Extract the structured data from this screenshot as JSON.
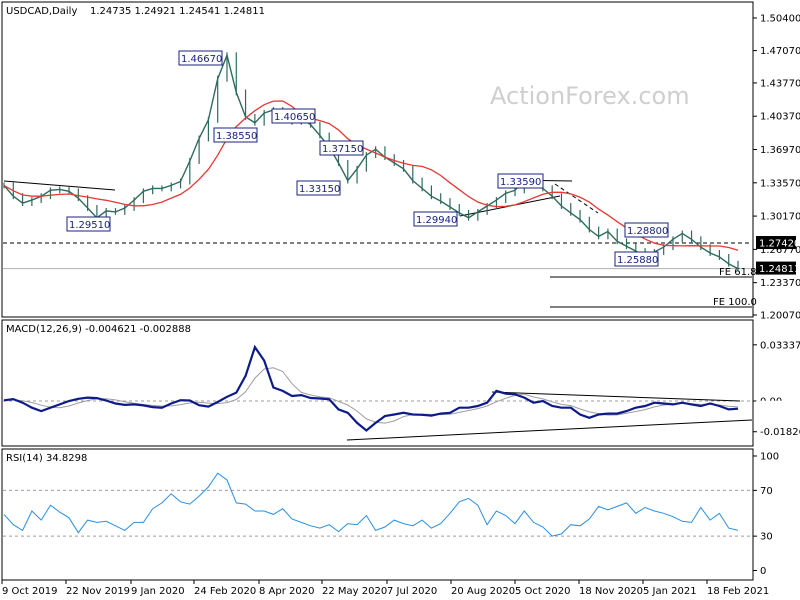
{
  "header": {
    "symbol": "USDCAD,Daily",
    "ohlc": "1.24735 1.24921 1.24541 1.24811"
  },
  "watermark": "ActionForex.com",
  "colors": {
    "price": "#2e6b5e",
    "ma": "#e53935",
    "macd": "#0d1b8a",
    "signal": "#9e9e9e",
    "rsi": "#2b8fe0",
    "annotation": "#1a237e"
  },
  "chart_data": [
    {
      "type": "line",
      "title": "USDCAD,Daily",
      "x_labels": [
        "9 Oct 2019",
        "22 Nov 2019",
        "9 Jan 2020",
        "24 Feb 2020",
        "8 Apr 2020",
        "22 May 2020",
        "7 Jul 2020",
        "20 Aug 2020",
        "5 Oct 2020",
        "18 Nov 2020",
        "5 Jan 2021",
        "18 Feb 2021"
      ],
      "y_ticks": [
        "1.50400",
        "1.47070",
        "1.43770",
        "1.40370",
        "1.36970",
        "1.33570",
        "1.30170",
        "1.26770",
        "1.23370",
        "1.20070"
      ],
      "ylim": [
        1.1945,
        1.514
      ],
      "current_price": "1.24811",
      "marked_level": "1.27420",
      "series": [
        {
          "values": [
            1.333,
            1.322,
            1.315,
            1.318,
            1.322,
            1.328,
            1.329,
            1.327,
            1.32,
            1.31,
            1.3,
            1.307,
            1.306,
            1.31,
            1.318,
            1.327,
            1.33,
            1.33,
            1.333,
            1.337,
            1.358,
            1.381,
            1.4,
            1.442,
            1.466,
            1.428,
            1.403,
            1.397,
            1.407,
            1.41,
            1.401,
            1.398,
            1.402,
            1.395,
            1.384,
            1.372,
            1.356,
            1.338,
            1.35,
            1.364,
            1.37,
            1.362,
            1.356,
            1.35,
            1.338,
            1.33,
            1.322,
            1.317,
            1.311,
            1.305,
            1.3,
            1.306,
            1.312,
            1.318,
            1.325,
            1.328,
            1.338,
            1.335,
            1.33,
            1.322,
            1.312,
            1.305,
            1.298,
            1.288,
            1.281,
            1.286,
            1.276,
            1.271,
            1.266,
            1.26,
            1.265,
            1.27,
            1.278,
            1.284,
            1.278,
            1.27,
            1.264,
            1.26,
            1.253,
            1.248
          ]
        }
      ],
      "annotations": [
        "1.46670",
        "1.40650",
        "1.38550",
        "1.37150",
        "1.33150",
        "1.29510",
        "1.29940",
        "1.33590",
        "1.28800",
        "1.25880"
      ],
      "fib_labels": [
        "FE 61.8",
        "FE 100.0"
      ]
    },
    {
      "type": "line",
      "title": "MACD(12,26,9) -0.004621 -0.002888",
      "y_ticks": [
        "0.03337",
        "0.00",
        "-0.018262"
      ],
      "ylim": [
        -0.0215,
        0.0345
      ],
      "current_macd": "-0.004621",
      "series": [
        {
          "values": [
            0.0004,
            0.0011,
            -0.001,
            -0.004,
            -0.006,
            -0.004,
            -0.002,
            0.0,
            0.0013,
            0.002,
            0.0017,
            0.0003,
            -0.0015,
            -0.0023,
            -0.002,
            -0.0026,
            -0.0036,
            -0.004,
            -0.0015,
            0.0005,
            0.0003,
            -0.0025,
            -0.0033,
            -0.0006,
            0.0025,
            0.005,
            0.015,
            0.032,
            0.024,
            0.008,
            0.006,
            0.003,
            0.0035,
            0.0018,
            0.0015,
            0.001,
            -0.005,
            -0.007,
            -0.013,
            -0.0175,
            -0.013,
            -0.009,
            -0.008,
            -0.007,
            -0.008,
            -0.0082,
            -0.0087,
            -0.0075,
            -0.007,
            -0.004,
            -0.004,
            -0.003,
            -0.001,
            0.006,
            0.0044,
            0.004,
            0.002,
            -0.001,
            0.0,
            -0.003,
            -0.004,
            -0.004,
            -0.008,
            -0.01,
            -0.008,
            -0.0075,
            -0.0075,
            -0.006,
            -0.004,
            -0.003,
            -0.001,
            -0.0015,
            -0.002,
            -0.001,
            -0.002,
            -0.003,
            -0.0015,
            -0.003,
            -0.005,
            -0.0046
          ]
        }
      ]
    },
    {
      "type": "line",
      "title": "RSI(14) 34.8298",
      "y_ticks": [
        "100",
        "70",
        "30",
        "0"
      ],
      "ylim": [
        -7.3,
        107.2
      ],
      "current_rsi": "34.8298",
      "series": [
        {
          "values": [
            49,
            40,
            35,
            52,
            44,
            57,
            51,
            46,
            33,
            44,
            42,
            43,
            39,
            35,
            42,
            42,
            54,
            59,
            67,
            60,
            58,
            65,
            73,
            85,
            79,
            59,
            58,
            52,
            52,
            49,
            54,
            45,
            42,
            39,
            37,
            40,
            34,
            41,
            40,
            48,
            35,
            38,
            44,
            41,
            39,
            44,
            37,
            41,
            50,
            60,
            63,
            57,
            40,
            52,
            48,
            41,
            52,
            42,
            38,
            30,
            32,
            40,
            39,
            45,
            56,
            53,
            56,
            59,
            50,
            55,
            52,
            50,
            47,
            43,
            42,
            55,
            44,
            50,
            37,
            35
          ]
        }
      ]
    }
  ]
}
